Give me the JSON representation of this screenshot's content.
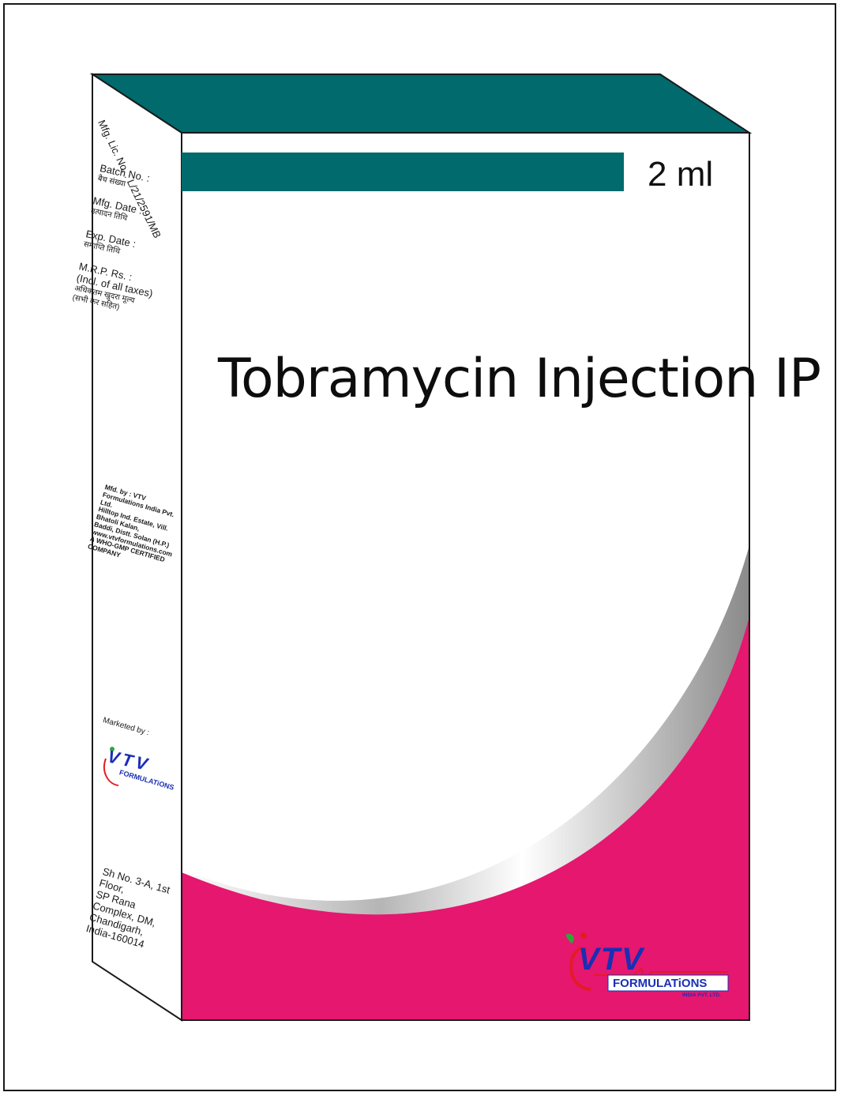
{
  "front": {
    "volume": "2 ml",
    "product_name": "Tobramycin Injection IP"
  },
  "side_panel": {
    "mfg_lic": "Mfg. Lic. No. : L/21/2591/MB",
    "batch_label": "Batch No. :",
    "batch_hindi": "बैच संख्या",
    "mfg_date_label": "Mfg. Date :",
    "mfg_date_hindi": "उत्पादन तिथि",
    "exp_date_label": "Exp. Date :",
    "exp_date_hindi": "समाप्ति तिथि",
    "mrp_label": "M.R.P. Rs. :",
    "mrp_taxes": "(Incl. of all taxes)",
    "mrp_hindi_1": "अधिकतम खुदरा मूल्य",
    "mrp_hindi_2": "(सभी कर सहित)",
    "mfd_by_1": "Mfd. by : VTV Formulations India Pvt. Ltd.",
    "mfd_by_2": "Hilltop Ind. Estate, Vill. Bhatoli Kalan,",
    "mfd_by_3": "Baddi, Distt. Solan (H.P.)",
    "mfd_by_4": "www.vtvformulations.com",
    "mfd_by_5": "A WHO-GMP CERTIFIED COMPANY",
    "marketed_by": "Marketed by :",
    "address_1": "Sh No. 3-A, 1st Floor,",
    "address_2": "SP Rana Complex, DM,",
    "address_3": "Chandigarh, India-160014"
  },
  "logo": {
    "letters": "VTV",
    "word": "FORMULATiONS",
    "sub": "INDIA PVT. LTD."
  },
  "colors": {
    "teal": "#006a6d",
    "magenta": "#e5176f",
    "outline": "#1a1a1a"
  }
}
